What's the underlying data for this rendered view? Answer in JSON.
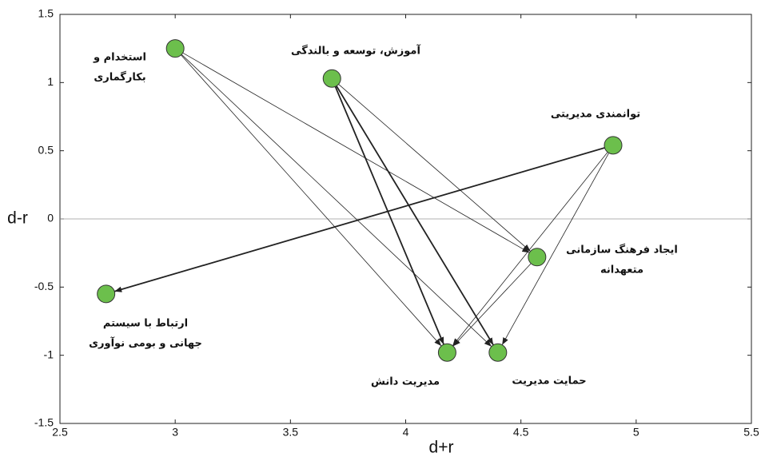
{
  "chart_data": {
    "type": "scatter",
    "xlabel": "d+r",
    "ylabel": "d-r",
    "xlim": [
      2.5,
      5.5
    ],
    "ylim": [
      -1.5,
      1.5
    ],
    "xticks": [
      2.5,
      3,
      3.5,
      4,
      4.5,
      5,
      5.5
    ],
    "yticks": [
      -1.5,
      -1,
      -0.5,
      0,
      0.5,
      1,
      1.5
    ],
    "color": "#6cbf4c",
    "nodes": [
      {
        "label": [
          "استخدام و",
          "بکارگماری"
        ],
        "x": 3.0,
        "y": 1.25
      },
      {
        "label": [
          "آموزش، توسعه و بالندگی"
        ],
        "x": 3.68,
        "y": 1.03
      },
      {
        "label": [
          "توانمندی مدیریتی"
        ],
        "x": 4.9,
        "y": 0.54
      },
      {
        "label": [
          "ایجاد فرهنگ سازمانی",
          "متعهدانه"
        ],
        "x": 4.57,
        "y": -0.28
      },
      {
        "label": [
          "ارتباط با سیستم",
          "جهانی و بومی نوآوری"
        ],
        "x": 2.7,
        "y": -0.55
      },
      {
        "label": [
          "مدیریت دانش"
        ],
        "x": 4.18,
        "y": -0.98
      },
      {
        "label": [
          "حمایت مدیریت"
        ],
        "x": 4.4,
        "y": -0.98
      }
    ],
    "links": [
      {
        "source": 0,
        "target": 3
      },
      {
        "source": 0,
        "target": 5
      },
      {
        "source": 0,
        "target": 6
      },
      {
        "source": 1,
        "target": 3
      },
      {
        "source": 1,
        "target": 5
      },
      {
        "source": 1,
        "target": 6
      },
      {
        "source": 2,
        "target": 4
      },
      {
        "source": 2,
        "target": 5
      },
      {
        "source": 2,
        "target": 6
      },
      {
        "source": 3,
        "target": 5
      }
    ]
  }
}
